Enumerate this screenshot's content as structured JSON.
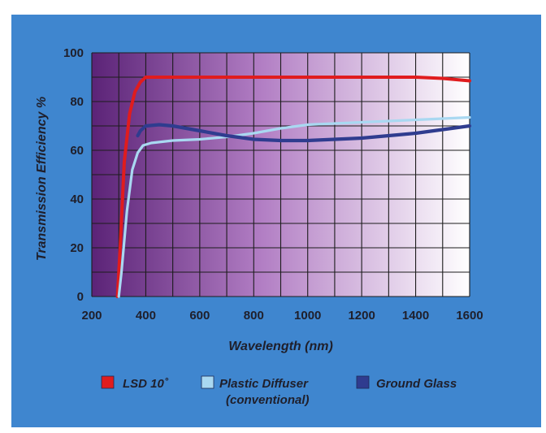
{
  "chart_data": {
    "type": "line",
    "title": "",
    "xlabel": "Wavelength (nm)",
    "ylabel": "Transmission Efficiency %",
    "xlim": [
      200,
      1600
    ],
    "ylim": [
      0,
      100
    ],
    "xticks": [
      200,
      400,
      600,
      800,
      1000,
      1200,
      1400,
      1600
    ],
    "yticks": [
      0,
      20,
      40,
      60,
      80,
      100
    ],
    "grid": true,
    "legend_position": "bottom",
    "colors": {
      "panel": "#3f86cf",
      "gradient_start": "#5b2377",
      "gradient_mid": "#b27ec4",
      "gradient_end": "#ffffff"
    },
    "series": [
      {
        "name": "LSD 10˚",
        "color": "#e01c1e",
        "x": [
          295,
          305,
          320,
          340,
          360,
          380,
          400,
          450,
          600,
          800,
          1000,
          1200,
          1400,
          1500,
          1600
        ],
        "y": [
          0,
          20,
          55,
          75,
          84,
          88,
          90,
          90,
          90,
          90,
          90,
          90,
          90,
          89.5,
          88.5
        ]
      },
      {
        "name": "Plastic Diffuser",
        "name_line2": "(conventional)",
        "color": "#a9d8f1",
        "x": [
          300,
          310,
          330,
          350,
          370,
          390,
          420,
          500,
          600,
          700,
          800,
          900,
          1000,
          1100,
          1200,
          1300,
          1400,
          1500,
          1600
        ],
        "y": [
          0,
          10,
          35,
          52,
          59,
          62,
          63,
          64,
          64.5,
          65.5,
          67,
          69,
          70.5,
          71,
          71.5,
          72,
          72.5,
          73,
          73.5
        ]
      },
      {
        "name": "Ground Glass",
        "color": "#2f3c8f",
        "x": [
          370,
          380,
          400,
          450,
          500,
          600,
          700,
          800,
          900,
          1000,
          1100,
          1200,
          1300,
          1400,
          1500,
          1600
        ],
        "y": [
          66,
          68,
          70,
          70.5,
          70,
          68,
          66,
          64.5,
          64,
          64,
          64.5,
          65,
          66,
          67,
          68.5,
          70
        ]
      }
    ]
  }
}
